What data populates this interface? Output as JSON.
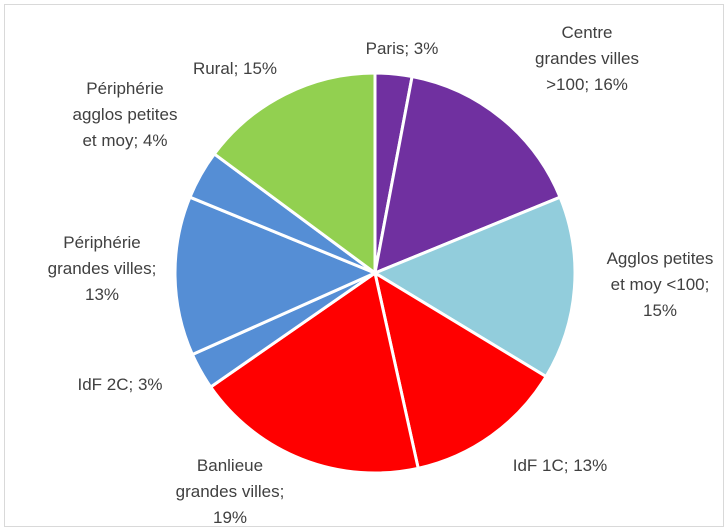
{
  "chart_data": {
    "type": "pie",
    "categories": [
      "Paris",
      "Centre grandes villes >100",
      "Agglos petites et moy <100",
      "IdF 1C",
      "Banlieue grandes villes",
      "IdF 2C",
      "Périphérie grandes villes",
      "Périphérie agglos petites et moy",
      "Rural"
    ],
    "values": [
      3,
      16,
      15,
      13,
      19,
      3,
      13,
      4,
      15
    ],
    "value_labels": [
      "3%",
      "16%",
      "15%",
      "13%",
      "19%",
      "3%",
      "13%",
      "4%",
      "15%"
    ],
    "label_separator": "; ",
    "colors": [
      "#7030a0",
      "#7030a0",
      "#92cddc",
      "#ff0000",
      "#ff0000",
      "#558ed5",
      "#558ed5",
      "#558ed5",
      "#92d050"
    ]
  }
}
